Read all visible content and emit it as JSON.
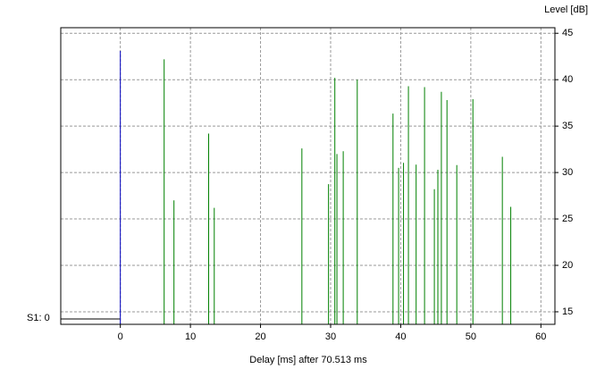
{
  "chart_data": {
    "type": "stem",
    "y_label": "Level [dB]",
    "x_label": "Delay [ms] after  70.513 ms",
    "annotation": "S1: 0",
    "xlim": [
      -8.5,
      62
    ],
    "xticks": [
      0,
      10,
      20,
      30,
      40,
      50,
      60
    ],
    "ylim": [
      13.65,
      45.6
    ],
    "yticks": [
      15,
      20,
      25,
      30,
      35,
      40,
      45
    ],
    "grid": true,
    "series": [
      {
        "color": "#0000c0",
        "x": [
          0
        ],
        "values": [
          43.1
        ]
      },
      {
        "color": "#008000",
        "x": [
          6.25,
          7.65,
          12.6,
          13.4,
          25.9,
          29.7,
          30.6,
          30.9,
          31.8,
          33.8,
          38.9,
          39.7,
          40.4,
          41.1,
          42.2,
          43.4,
          44.8,
          45.3,
          45.8,
          46.6,
          48.0,
          50.3,
          54.5,
          55.7
        ],
        "values": [
          42.2,
          27.0,
          34.2,
          26.2,
          32.6,
          28.75,
          40.2,
          32.0,
          32.3,
          40.0,
          36.35,
          30.5,
          31.05,
          39.3,
          30.85,
          39.2,
          28.2,
          30.3,
          38.7,
          37.8,
          30.8,
          37.9,
          31.7,
          26.3
        ]
      }
    ]
  }
}
